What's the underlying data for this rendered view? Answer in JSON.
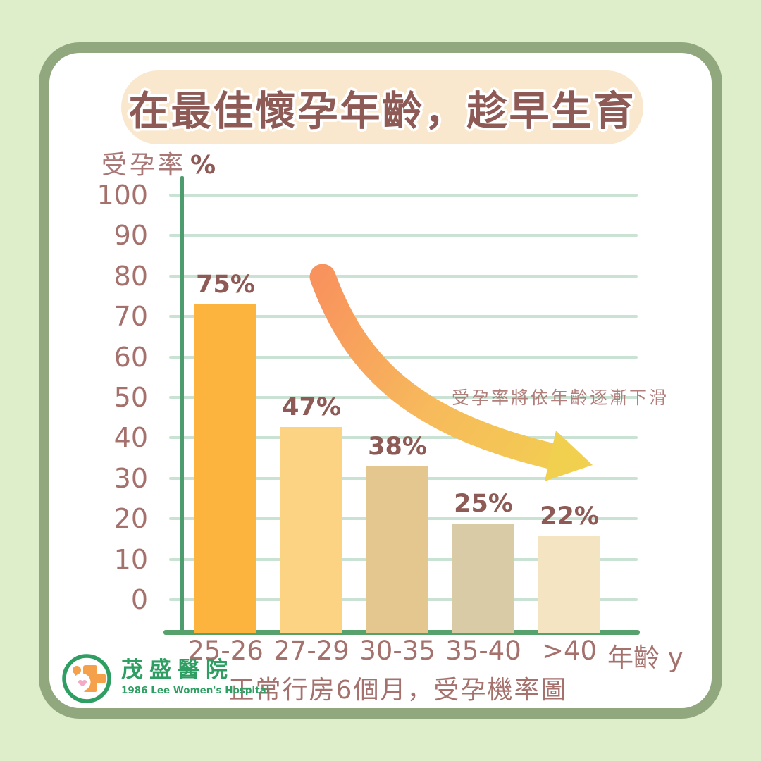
{
  "title": {
    "text": "在最佳懷孕年齡，趁早生育"
  },
  "y_axis": {
    "label": "受孕率",
    "unit": "%",
    "ticks": [
      100,
      90,
      80,
      70,
      60,
      50,
      40,
      30,
      20,
      10,
      0
    ]
  },
  "x_axis": {
    "title": "年齡 y"
  },
  "chart_data": {
    "type": "bar",
    "categories": [
      "25-26",
      "27-29",
      "30-35",
      "35-40",
      ">40"
    ],
    "values": [
      75,
      47,
      38,
      25,
      22
    ],
    "value_labels": [
      "75%",
      "47%",
      "38%",
      "25%",
      "22%"
    ],
    "bar_colors": [
      "#FDB43E",
      "#FCD383",
      "#E3C78E",
      "#D9CBA5",
      "#F4E4C2"
    ],
    "title": "在最佳懷孕年齡，趁早生育",
    "xlabel": "年齡 y",
    "ylabel": "受孕率 %",
    "ylim": [
      0,
      100
    ],
    "grid": true,
    "legend": false,
    "annotation": "受孕率將依年齡逐漸下滑"
  },
  "annotation": {
    "text": "受孕率將依年齡逐漸下滑"
  },
  "caption": {
    "text": "正常行房6個月，受孕機率圖"
  },
  "logo": {
    "name": "茂盛醫院",
    "subtitle": "1986 Lee Women's Hospital"
  },
  "colors": {
    "page_background": "#DEEECB",
    "frame_border": "#91A87E",
    "card_background": "#FFFFFF",
    "banner_background": "#F9E8CD",
    "title_text": "#8E5A55",
    "axis_green": "#4C9C6E",
    "baseline_green": "#57A26C",
    "gridline_green": "#C9E2D3",
    "tick_text": "#A5716D",
    "value_text": "#8E5A55",
    "annotation_text": "#B07E7B",
    "arrow_start": "#F8935D",
    "arrow_end": "#F2D04F",
    "logo_green": "#2E9E62",
    "logo_orange": "#F5A04B",
    "logo_pink": "#F4A9C4"
  }
}
